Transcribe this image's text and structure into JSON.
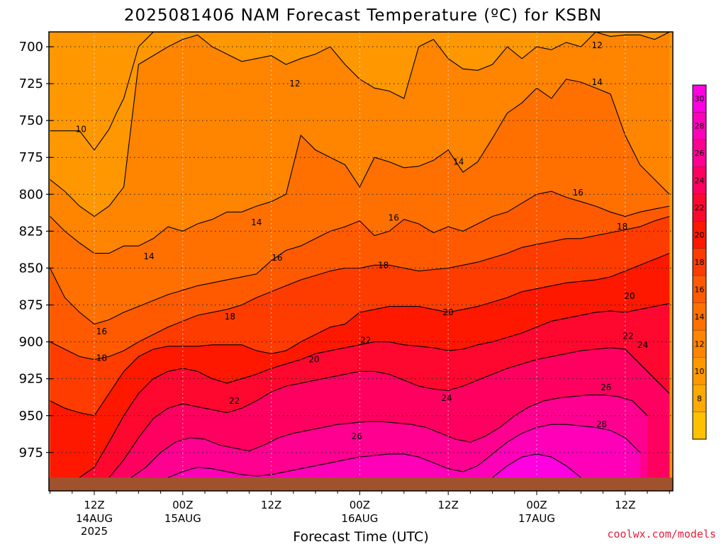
{
  "chart_data": {
    "type": "heatmap",
    "title": "2025081406 NAM Forecast Temperature (ºC) for KSBN",
    "xlabel": "Forecast Time (UTC)",
    "ylabel": "",
    "credit": "coolwx.com/models",
    "y_axis": {
      "unit": "hPa",
      "inverted": true,
      "range": [
        690,
        992
      ],
      "ticks": [
        700,
        725,
        750,
        775,
        800,
        825,
        850,
        875,
        900,
        925,
        950,
        975
      ]
    },
    "x_axis": {
      "range_hours": [
        6,
        90
      ],
      "ticks": [
        {
          "hour": 12,
          "label": "12Z",
          "date": "14AUG",
          "year": "2025"
        },
        {
          "hour": 24,
          "label": "00Z",
          "date": "15AUG",
          "year": ""
        },
        {
          "hour": 36,
          "label": "12Z",
          "date": "",
          "year": ""
        },
        {
          "hour": 48,
          "label": "00Z",
          "date": "16AUG",
          "year": ""
        },
        {
          "hour": 60,
          "label": "12Z",
          "date": "",
          "year": ""
        },
        {
          "hour": 72,
          "label": "00Z",
          "date": "17AUG",
          "year": ""
        },
        {
          "hour": 84,
          "label": "12Z",
          "date": "",
          "year": ""
        }
      ]
    },
    "grid": true,
    "surface_color": "#a0522d",
    "colorbar": {
      "levels": [
        6,
        8,
        10,
        12,
        14,
        16,
        18,
        20,
        22,
        24,
        26,
        28,
        30,
        32
      ],
      "labels": [
        8,
        10,
        12,
        14,
        16,
        18,
        20,
        22,
        24,
        26,
        28,
        30
      ],
      "colors": [
        "#ffc000",
        "#ffa800",
        "#ff9800",
        "#ff8400",
        "#ff7000",
        "#ff5a00",
        "#ff3c00",
        "#ff1800",
        "#ff0830",
        "#ff0060",
        "#ff0090",
        "#ff00b8",
        "#ff00e0"
      ]
    },
    "isotherms": [
      {
        "temp": 10,
        "x": [
          6,
          10,
          12,
          14,
          15,
          16,
          18,
          20,
          22,
          24,
          26,
          28,
          30,
          32,
          34,
          36,
          38,
          40,
          42,
          44,
          46,
          48,
          50,
          52,
          54,
          56,
          58,
          60,
          62,
          64,
          66,
          68,
          70,
          72,
          74,
          76,
          78,
          80,
          82,
          84,
          86,
          88,
          90
        ],
        "p": [
          757,
          757,
          770,
          756,
          745,
          735,
          700,
          690,
          690,
          690,
          690,
          690,
          690,
          690,
          690,
          690,
          690,
          690,
          690,
          690,
          690,
          690,
          690,
          690,
          690,
          690,
          690,
          690,
          690,
          690,
          690,
          690,
          690,
          690,
          690,
          690,
          690,
          690,
          690,
          690,
          690,
          690,
          690
        ]
      },
      {
        "temp": 12,
        "x": [
          6,
          8,
          10,
          12,
          14,
          16,
          18,
          20,
          22,
          24,
          26,
          28,
          30,
          32,
          34,
          36,
          38,
          40,
          42,
          44,
          46,
          48,
          50,
          52,
          54,
          56,
          58,
          60,
          62,
          64,
          66,
          68,
          70,
          72,
          74,
          76,
          78,
          80,
          82,
          84,
          86,
          88,
          90
        ],
        "p": [
          790,
          798,
          808,
          815,
          808,
          795,
          712,
          706,
          700,
          695,
          692,
          700,
          705,
          710,
          708,
          706,
          712,
          708,
          705,
          700,
          712,
          722,
          728,
          730,
          735,
          700,
          695,
          708,
          715,
          716,
          712,
          700,
          708,
          700,
          702,
          697,
          700,
          690,
          693,
          692,
          692,
          695,
          690
        ]
      },
      {
        "temp": 14,
        "x": [
          6,
          8,
          10,
          12,
          14,
          16,
          18,
          20,
          22,
          24,
          26,
          28,
          30,
          32,
          34,
          36,
          38,
          40,
          42,
          44,
          46,
          48,
          50,
          52,
          54,
          56,
          58,
          60,
          62,
          64,
          66,
          68,
          70,
          72,
          74,
          76,
          78,
          80,
          82,
          84,
          86,
          88,
          90
        ],
        "p": [
          815,
          825,
          833,
          840,
          840,
          835,
          835,
          830,
          822,
          825,
          820,
          817,
          812,
          812,
          808,
          805,
          800,
          760,
          770,
          775,
          780,
          795,
          775,
          778,
          782,
          781,
          777,
          770,
          785,
          778,
          762,
          745,
          738,
          728,
          735,
          722,
          724,
          728,
          732,
          760,
          780,
          790,
          800
        ]
      },
      {
        "temp": 16,
        "x": [
          6,
          8,
          10,
          12,
          14,
          16,
          18,
          20,
          22,
          24,
          26,
          28,
          30,
          32,
          34,
          36,
          38,
          40,
          42,
          44,
          46,
          48,
          50,
          52,
          54,
          56,
          58,
          60,
          62,
          64,
          66,
          68,
          70,
          72,
          74,
          76,
          78,
          80,
          82,
          84,
          86,
          88,
          90
        ],
        "p": [
          850,
          870,
          880,
          888,
          885,
          880,
          876,
          872,
          868,
          865,
          862,
          860,
          858,
          856,
          854,
          845,
          838,
          835,
          830,
          825,
          822,
          818,
          828,
          825,
          817,
          820,
          826,
          822,
          825,
          820,
          815,
          812,
          806,
          800,
          798,
          802,
          805,
          808,
          812,
          815,
          812,
          810,
          808
        ]
      },
      {
        "temp": 18,
        "x": [
          6,
          8,
          10,
          12,
          14,
          16,
          18,
          20,
          22,
          24,
          26,
          28,
          30,
          32,
          34,
          36,
          38,
          40,
          42,
          44,
          46,
          48,
          50,
          52,
          54,
          56,
          58,
          60,
          62,
          64,
          66,
          68,
          70,
          72,
          74,
          76,
          78,
          80,
          82,
          84,
          86,
          88,
          90
        ],
        "p": [
          900,
          905,
          910,
          912,
          910,
          906,
          900,
          895,
          890,
          886,
          882,
          880,
          878,
          875,
          870,
          866,
          862,
          858,
          855,
          852,
          850,
          850,
          848,
          848,
          850,
          852,
          851,
          850,
          848,
          846,
          843,
          840,
          836,
          834,
          832,
          830,
          830,
          828,
          826,
          824,
          822,
          818,
          815
        ]
      },
      {
        "temp": 20,
        "x": [
          6,
          8,
          10,
          12,
          14,
          16,
          18,
          20,
          22,
          24,
          26,
          28,
          30,
          32,
          34,
          36,
          38,
          40,
          42,
          44,
          46,
          48,
          50,
          52,
          54,
          56,
          58,
          60,
          62,
          64,
          66,
          68,
          70,
          72,
          74,
          76,
          78,
          80,
          82,
          84,
          86,
          88,
          90
        ],
        "p": [
          940,
          945,
          948,
          950,
          935,
          920,
          910,
          905,
          903,
          903,
          903,
          902,
          902,
          902,
          906,
          908,
          906,
          900,
          895,
          890,
          888,
          880,
          878,
          876,
          876,
          876,
          878,
          880,
          878,
          876,
          873,
          870,
          866,
          864,
          862,
          860,
          859,
          858,
          856,
          852,
          848,
          844,
          840
        ]
      },
      {
        "temp": 22,
        "x": [
          10,
          12,
          14,
          16,
          18,
          20,
          22,
          24,
          26,
          28,
          30,
          32,
          34,
          36,
          38,
          40,
          42,
          44,
          46,
          48,
          50,
          52,
          54,
          56,
          58,
          60,
          62,
          64,
          66,
          68,
          70,
          72,
          74,
          76,
          78,
          80,
          82,
          84,
          86,
          88,
          90
        ],
        "p": [
          992,
          985,
          968,
          950,
          935,
          925,
          920,
          918,
          920,
          925,
          928,
          925,
          922,
          918,
          915,
          912,
          908,
          906,
          904,
          902,
          900,
          900,
          902,
          903,
          904,
          906,
          905,
          902,
          900,
          897,
          894,
          890,
          886,
          884,
          882,
          880,
          879,
          880,
          878,
          876,
          874
        ]
      },
      {
        "temp": 24,
        "x": [
          14,
          16,
          18,
          20,
          22,
          24,
          26,
          28,
          30,
          32,
          34,
          36,
          38,
          40,
          42,
          44,
          46,
          48,
          50,
          52,
          54,
          56,
          58,
          60,
          62,
          64,
          66,
          68,
          70,
          72,
          74,
          76,
          78,
          80,
          82,
          84,
          86,
          88,
          90
        ],
        "p": [
          992,
          980,
          965,
          952,
          945,
          942,
          944,
          946,
          948,
          945,
          940,
          934,
          930,
          928,
          926,
          924,
          922,
          920,
          920,
          922,
          926,
          930,
          932,
          933,
          930,
          926,
          922,
          918,
          915,
          912,
          910,
          908,
          906,
          905,
          904,
          905,
          915,
          925,
          935
        ]
      },
      {
        "temp": 26,
        "x": [
          17,
          19,
          21,
          23,
          25,
          27,
          29,
          31,
          33,
          35,
          37,
          39,
          41,
          43,
          45,
          47,
          49,
          51,
          53,
          55,
          57,
          59,
          61,
          63,
          65,
          67,
          69,
          71,
          73,
          75,
          77,
          79,
          81,
          83,
          85,
          87
        ],
        "p": [
          992,
          985,
          975,
          968,
          965,
          966,
          970,
          972,
          974,
          970,
          965,
          962,
          960,
          958,
          956,
          955,
          954,
          954,
          955,
          956,
          958,
          962,
          966,
          968,
          964,
          958,
          950,
          944,
          940,
          938,
          937,
          936,
          936,
          937,
          940,
          950
        ]
      },
      {
        "temp": 28,
        "x": [
          22,
          24,
          26,
          28,
          30,
          32,
          34,
          36,
          38,
          40,
          42,
          44,
          46,
          48,
          50,
          52,
          54,
          56,
          58,
          60,
          62,
          64,
          66,
          68,
          70,
          72,
          74,
          76,
          78,
          80,
          82,
          84,
          86
        ],
        "p": [
          992,
          988,
          985,
          986,
          988,
          990,
          991,
          990,
          988,
          986,
          984,
          982,
          980,
          978,
          977,
          976,
          976,
          978,
          982,
          986,
          988,
          984,
          976,
          968,
          962,
          958,
          956,
          956,
          957,
          958,
          960,
          965,
          975
        ]
      },
      {
        "temp": 30,
        "x": [
          66,
          68,
          70,
          72,
          74,
          76,
          78
        ],
        "p": [
          992,
          984,
          978,
          976,
          978,
          984,
          992
        ]
      }
    ],
    "contour_labels": [
      {
        "text": "10",
        "x": 10.2,
        "p": 756
      },
      {
        "text": "12",
        "x": 39.2,
        "p": 725
      },
      {
        "text": "12",
        "x": 80.2,
        "p": 699
      },
      {
        "text": "14",
        "x": 80.2,
        "p": 724
      },
      {
        "text": "14",
        "x": 61.4,
        "p": 778
      },
      {
        "text": "16",
        "x": 77.6,
        "p": 799
      },
      {
        "text": "16",
        "x": 52.6,
        "p": 816
      },
      {
        "text": "14",
        "x": 34.0,
        "p": 819
      },
      {
        "text": "18",
        "x": 83.6,
        "p": 822
      },
      {
        "text": "14",
        "x": 19.4,
        "p": 842
      },
      {
        "text": "16",
        "x": 36.8,
        "p": 843
      },
      {
        "text": "18",
        "x": 51.2,
        "p": 848
      },
      {
        "text": "20",
        "x": 84.6,
        "p": 869
      },
      {
        "text": "20",
        "x": 60.0,
        "p": 880
      },
      {
        "text": "18",
        "x": 30.4,
        "p": 883
      },
      {
        "text": "16",
        "x": 13.0,
        "p": 893
      },
      {
        "text": "22",
        "x": 84.4,
        "p": 896
      },
      {
        "text": "22",
        "x": 48.8,
        "p": 899
      },
      {
        "text": "24",
        "x": 86.4,
        "p": 902
      },
      {
        "text": "18",
        "x": 13.0,
        "p": 911
      },
      {
        "text": "20",
        "x": 41.8,
        "p": 912
      },
      {
        "text": "26",
        "x": 81.4,
        "p": 931
      },
      {
        "text": "24",
        "x": 59.8,
        "p": 938
      },
      {
        "text": "22",
        "x": 31.0,
        "p": 940
      },
      {
        "text": "28",
        "x": 80.8,
        "p": 956
      },
      {
        "text": "26",
        "x": 47.6,
        "p": 964
      }
    ]
  }
}
